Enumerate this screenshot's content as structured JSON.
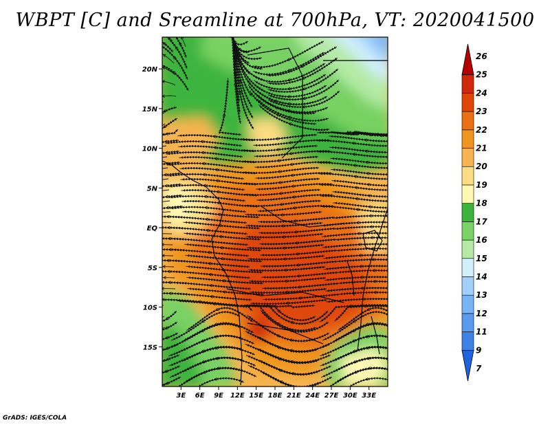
{
  "chart_data": {
    "type": "heatmap",
    "title": "WBPT [C] and Sreamline at 700hPa, VT: 2020041500",
    "variable": "WBPT",
    "units": "C",
    "level": "700hPa",
    "valid_time": "2020041500",
    "x_range": [
      0,
      36
    ],
    "y_range": [
      -20,
      24
    ],
    "x_ticks": [
      {
        "value": 3,
        "label": "3E"
      },
      {
        "value": 6,
        "label": "6E"
      },
      {
        "value": 9,
        "label": "9E"
      },
      {
        "value": 12,
        "label": "12E"
      },
      {
        "value": 15,
        "label": "15E"
      },
      {
        "value": 18,
        "label": "18E"
      },
      {
        "value": 21,
        "label": "21E"
      },
      {
        "value": 24,
        "label": "24E"
      },
      {
        "value": 27,
        "label": "27E"
      },
      {
        "value": 30,
        "label": "30E"
      },
      {
        "value": 33,
        "label": "33E"
      }
    ],
    "y_ticks": [
      {
        "value": 20,
        "label": "20N"
      },
      {
        "value": 15,
        "label": "15N"
      },
      {
        "value": 10,
        "label": "10N"
      },
      {
        "value": 5,
        "label": "5N"
      },
      {
        "value": 0,
        "label": "EQ"
      },
      {
        "value": -5,
        "label": "5S"
      },
      {
        "value": -10,
        "label": "10S"
      },
      {
        "value": -15,
        "label": "15S"
      }
    ],
    "colorbar": {
      "levels": [
        7,
        9,
        11,
        12,
        13,
        14,
        15,
        16,
        17,
        18,
        19,
        20,
        21,
        22,
        23,
        24,
        25,
        26
      ],
      "colors": [
        "#1e64dc",
        "#3c82e6",
        "#5a9bf0",
        "#78b4f5",
        "#a0d0fa",
        "#d2f0fc",
        "#b4eaa5",
        "#78d264",
        "#3cb43c",
        "#fff8b4",
        "#fadc82",
        "#f5b450",
        "#f0961e",
        "#ea7012",
        "#e0460a",
        "#d0280a",
        "#b40000"
      ],
      "extend": "both"
    }
  },
  "credit": "GrADS: IGES/COLA"
}
